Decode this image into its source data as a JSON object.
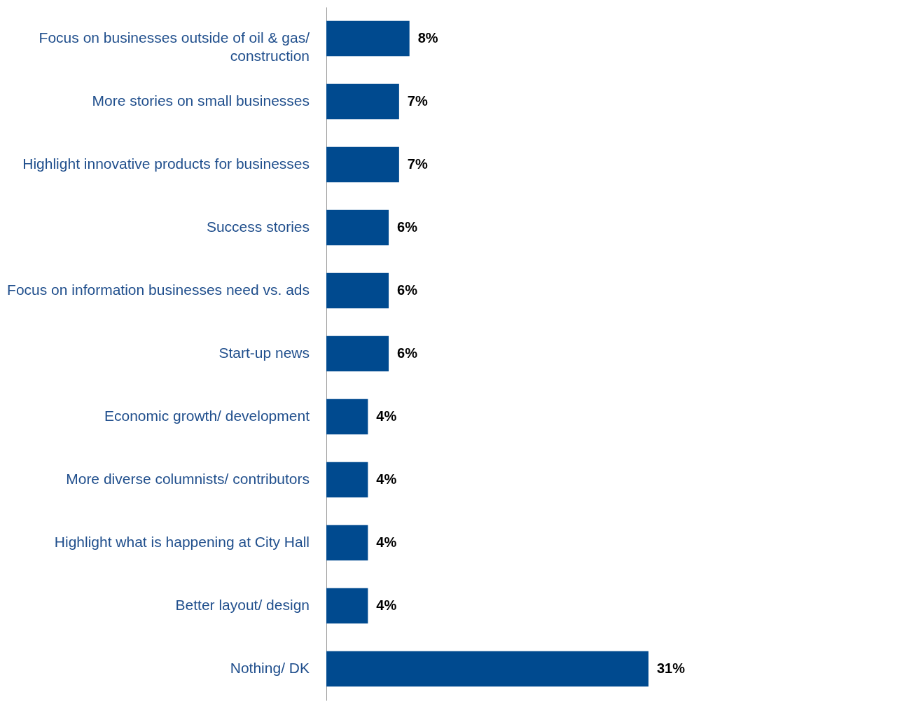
{
  "chart_data": {
    "type": "bar",
    "orientation": "horizontal",
    "categories": [
      "Focus on businesses outside of oil & gas/ construction",
      "More stories on small businesses",
      "Highlight innovative products for businesses",
      "Success stories",
      "Focus on information businesses need vs. ads",
      "Start-up news",
      "Economic growth/ development",
      "More diverse columnists/ contributors",
      "Highlight what is happening at City Hall",
      "Better layout/ design",
      "Nothing/ DK"
    ],
    "values": [
      8,
      7,
      7,
      6,
      6,
      6,
      4,
      4,
      4,
      4,
      31
    ],
    "value_labels": [
      "8%",
      "7%",
      "7%",
      "6%",
      "6%",
      "6%",
      "4%",
      "4%",
      "4%",
      "4%",
      "31%"
    ],
    "color": "#004a8f",
    "grid": false
  }
}
